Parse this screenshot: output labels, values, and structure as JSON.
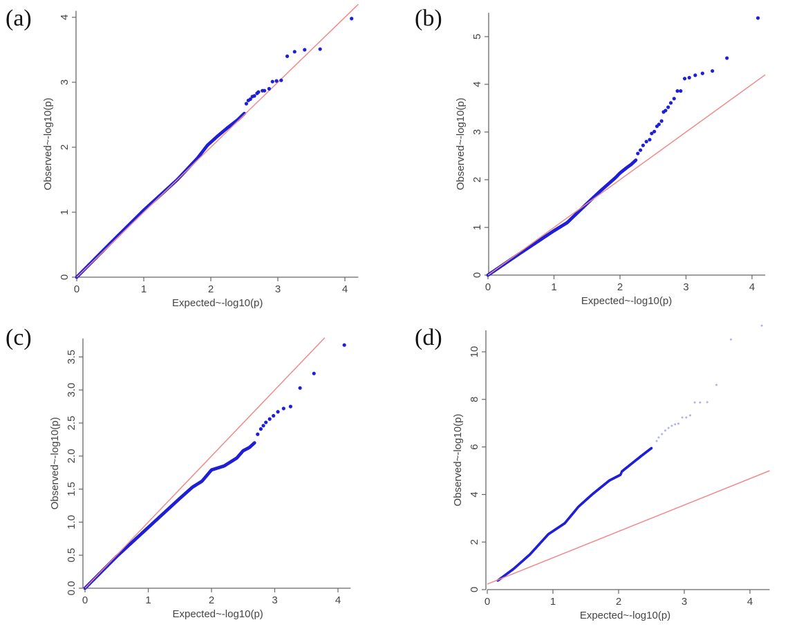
{
  "figure": {
    "panel_labels": [
      "(a)",
      "(b)",
      "(c)",
      "(d)"
    ]
  },
  "colors": {
    "points": "#1f1fd6",
    "reference_line": "#f08a8a",
    "axis": "#666666",
    "text": "#444444"
  },
  "chart_data": [
    {
      "id": "a",
      "type": "scatter",
      "title": "(a)",
      "xlabel": "Expected~-log10(p)",
      "ylabel": "Observed~-log10(p)",
      "xlim": [
        0,
        4.2
      ],
      "ylim": [
        0,
        4.1
      ],
      "xticks": [
        0,
        1,
        2,
        3,
        4
      ],
      "xtick_labels": [
        "0",
        "1",
        "2",
        "3",
        "4"
      ],
      "yticks": [
        0,
        1,
        2,
        3,
        4
      ],
      "ytick_labels": [
        "0",
        "1",
        "2",
        "3",
        "4"
      ],
      "reference_line": {
        "x": [
          0,
          4.2
        ],
        "y": [
          0,
          4.2
        ]
      },
      "curve": {
        "x": [
          0,
          0.5,
          1.0,
          1.5,
          1.8,
          1.95,
          2.1,
          2.25,
          2.4,
          2.5
        ],
        "y": [
          0,
          0.52,
          1.03,
          1.5,
          1.83,
          2.03,
          2.17,
          2.3,
          2.42,
          2.52
        ]
      },
      "points": {
        "x": [
          2.53,
          2.56,
          2.59,
          2.62,
          2.65,
          2.69,
          2.71,
          2.77,
          2.8,
          2.87,
          2.92,
          2.98,
          3.05,
          3.14,
          3.25,
          3.4,
          3.63,
          4.1
        ],
        "y": [
          2.67,
          2.72,
          2.74,
          2.78,
          2.79,
          2.83,
          2.85,
          2.87,
          2.87,
          2.9,
          3.01,
          3.02,
          3.03,
          3.4,
          3.47,
          3.5,
          3.51,
          3.98
        ]
      }
    },
    {
      "id": "b",
      "type": "scatter",
      "title": "(b)",
      "xlabel": "Expected~-log10(p)",
      "ylabel": "Observed~-log10(p)",
      "xlim": [
        0,
        4.2
      ],
      "ylim": [
        0,
        5.5
      ],
      "xticks": [
        0,
        1,
        2,
        3,
        4
      ],
      "xtick_labels": [
        "0",
        "1",
        "2",
        "3",
        "4"
      ],
      "yticks": [
        0,
        1,
        2,
        3,
        4,
        5
      ],
      "ytick_labels": [
        "0",
        "1",
        "2",
        "3",
        "4",
        "5"
      ],
      "reference_line": {
        "x": [
          0,
          4.2
        ],
        "y": [
          0,
          4.2
        ]
      },
      "curve": {
        "x": [
          0,
          0.5,
          1.0,
          1.2,
          1.5,
          1.7,
          1.93,
          2.0,
          2.1,
          2.17,
          2.24
        ],
        "y": [
          0,
          0.47,
          0.93,
          1.1,
          1.5,
          1.76,
          2.04,
          2.14,
          2.25,
          2.32,
          2.41
        ]
      },
      "points": {
        "x": [
          2.27,
          2.31,
          2.35,
          2.4,
          2.45,
          2.48,
          2.52,
          2.56,
          2.59,
          2.63,
          2.66,
          2.69,
          2.73,
          2.77,
          2.82,
          2.87,
          2.92,
          2.98,
          3.05,
          3.14,
          3.25,
          3.4,
          3.62,
          4.09
        ],
        "y": [
          2.55,
          2.62,
          2.72,
          2.8,
          2.84,
          2.97,
          3.01,
          3.12,
          3.16,
          3.23,
          3.42,
          3.45,
          3.52,
          3.61,
          3.7,
          3.86,
          3.86,
          4.12,
          4.14,
          4.19,
          4.23,
          4.28,
          4.55,
          5.39
        ]
      }
    },
    {
      "id": "c",
      "type": "scatter",
      "title": "(c)",
      "xlabel": "Expected~-log10(p)",
      "ylabel": "Observed~-log10(p)",
      "xlim": [
        0,
        4.2
      ],
      "ylim": [
        0,
        3.78
      ],
      "xticks": [
        0,
        1,
        2,
        3,
        4
      ],
      "xtick_labels": [
        "0",
        "1",
        "2",
        "3",
        "4"
      ],
      "yticks": [
        0,
        0.5,
        1.0,
        1.5,
        2.0,
        2.5,
        3.0,
        3.5
      ],
      "ytick_labels": [
        "0.0",
        "0.5",
        "1.0",
        "1.5",
        "2.0",
        "2.5",
        "3.0",
        "3.5"
      ],
      "reference_line": {
        "x": [
          0,
          3.79
        ],
        "y": [
          0,
          3.79
        ]
      },
      "curve": {
        "x": [
          0,
          0.5,
          1.0,
          1.5,
          1.7,
          1.85,
          2.0,
          2.2,
          2.4,
          2.5,
          2.6,
          2.68
        ],
        "y": [
          0,
          0.48,
          0.92,
          1.36,
          1.53,
          1.62,
          1.79,
          1.85,
          1.97,
          2.08,
          2.13,
          2.2
        ]
      },
      "points": {
        "x": [
          2.73,
          2.78,
          2.82,
          2.86,
          2.92,
          2.98,
          3.05,
          3.14,
          3.25,
          3.4,
          3.62,
          4.1
        ],
        "y": [
          2.33,
          2.41,
          2.46,
          2.51,
          2.56,
          2.61,
          2.67,
          2.72,
          2.75,
          3.03,
          3.25,
          3.68
        ]
      }
    },
    {
      "id": "d",
      "type": "scatter",
      "title": "(d)",
      "xlabel": "Expected~-log10(p)",
      "ylabel": "Observed~-log10(p)",
      "xlim": [
        0,
        4.3
      ],
      "ylim": [
        0,
        10.9
      ],
      "xticks": [
        0,
        1,
        2,
        3,
        4
      ],
      "xtick_labels": [
        "0",
        "1",
        "2",
        "3",
        "4"
      ],
      "yticks": [
        0,
        2,
        4,
        6,
        8,
        10
      ],
      "ytick_labels": [
        "0",
        "2",
        "4",
        "6",
        "8",
        "10"
      ],
      "reference_line": {
        "x": [
          0,
          4.3
        ],
        "y": [
          0.23,
          5.0
        ]
      },
      "curve": {
        "x": [
          0.16,
          0.4,
          0.65,
          0.93,
          1.18,
          1.39,
          1.6,
          1.86,
          2.03,
          2.05,
          2.34,
          2.5
        ],
        "y": [
          0.38,
          0.87,
          1.48,
          2.33,
          2.79,
          3.49,
          4.01,
          4.59,
          4.83,
          4.97,
          5.61,
          5.95
        ]
      },
      "points": {
        "x": [
          2.58,
          2.61,
          2.66,
          2.71,
          2.76,
          2.81,
          2.86,
          2.91,
          2.97,
          3.03,
          3.09,
          3.16,
          3.24,
          3.35,
          3.49,
          3.71,
          4.18
        ],
        "y": [
          6.25,
          6.4,
          6.54,
          6.69,
          6.8,
          6.89,
          6.95,
          6.98,
          7.24,
          7.24,
          7.33,
          7.87,
          7.87,
          7.88,
          8.61,
          10.52,
          11.1
        ]
      },
      "faint_points": true
    }
  ]
}
